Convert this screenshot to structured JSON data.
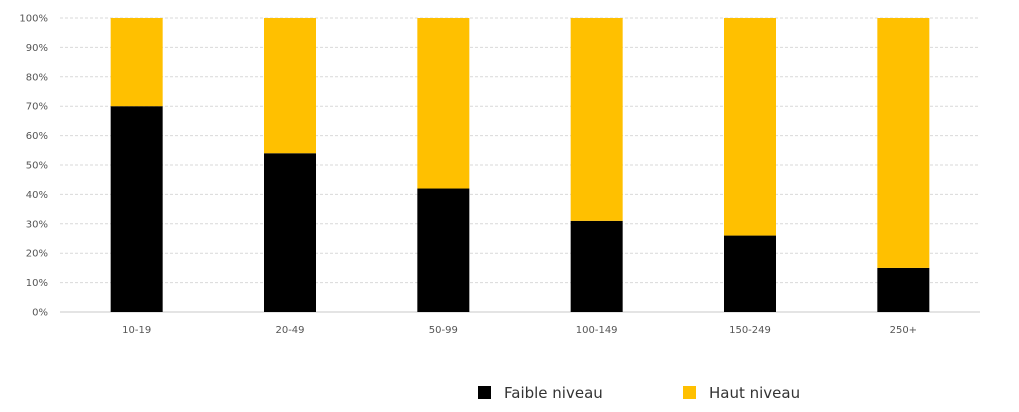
{
  "chart_data": {
    "type": "bar",
    "stacked": true,
    "normalized": true,
    "categories": [
      "10-19",
      "20-49",
      "50-99",
      "100-149",
      "150-249",
      "250+"
    ],
    "series": [
      {
        "name": "Faible niveau",
        "color": "#000000",
        "values": [
          70,
          54,
          42,
          31,
          26,
          15
        ]
      },
      {
        "name": "Haut niveau",
        "color": "#FFC000",
        "values": [
          30,
          46,
          58,
          69,
          74,
          85
        ]
      }
    ],
    "yticks": [
      "0%",
      "10%",
      "20%",
      "30%",
      "40%",
      "50%",
      "60%",
      "70%",
      "80%",
      "90%",
      "100%"
    ],
    "ylim": [
      0,
      100
    ],
    "grid": true,
    "legend_position": "bottom",
    "title": "",
    "xlabel": "",
    "ylabel": ""
  }
}
